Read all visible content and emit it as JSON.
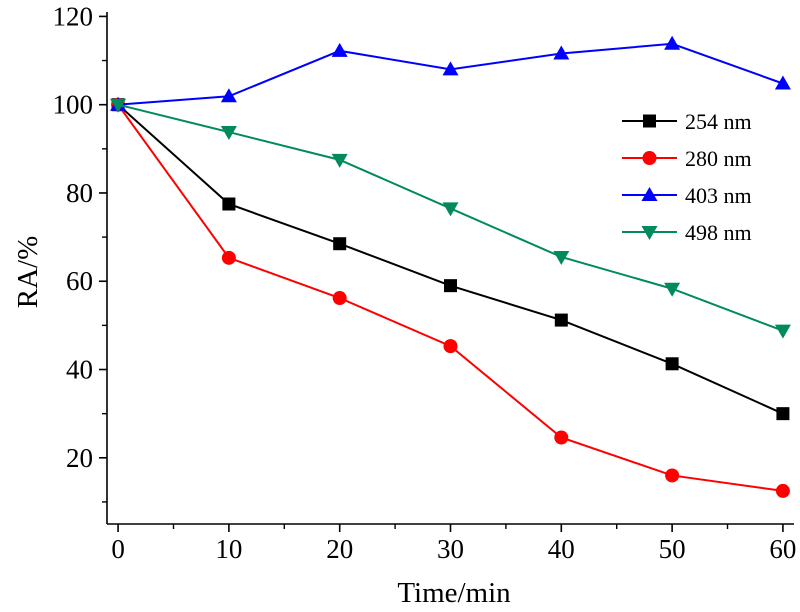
{
  "chart_data": {
    "type": "line",
    "xlabel": "Time/min",
    "ylabel": "RA/%",
    "xlim": [
      -1,
      61
    ],
    "ylim": [
      5,
      121
    ],
    "x_ticks": [
      0,
      10,
      20,
      30,
      40,
      50,
      60
    ],
    "y_ticks": [
      20,
      40,
      60,
      80,
      100,
      120
    ],
    "grid": false,
    "legend_position": "top-right",
    "x": [
      0,
      10,
      20,
      30,
      40,
      50,
      60
    ],
    "series": [
      {
        "name": "254 nm",
        "color": "#000000",
        "marker": "square",
        "values": [
          100,
          77.5,
          68.5,
          59,
          51.2,
          41.3,
          30
        ]
      },
      {
        "name": "280 nm",
        "color": "#ff0000",
        "marker": "circle",
        "values": [
          100,
          65.3,
          56.2,
          45.3,
          24.6,
          16,
          12.5
        ]
      },
      {
        "name": "403 nm",
        "color": "#0000ff",
        "marker": "triangle-up",
        "values": [
          100,
          101.9,
          112.2,
          108,
          111.6,
          113.8,
          104.8
        ]
      },
      {
        "name": "498 nm",
        "color": "#008a5e",
        "marker": "triangle-down",
        "values": [
          100,
          93.8,
          87.5,
          76.5,
          65.5,
          58.3,
          48.8
        ]
      }
    ]
  }
}
